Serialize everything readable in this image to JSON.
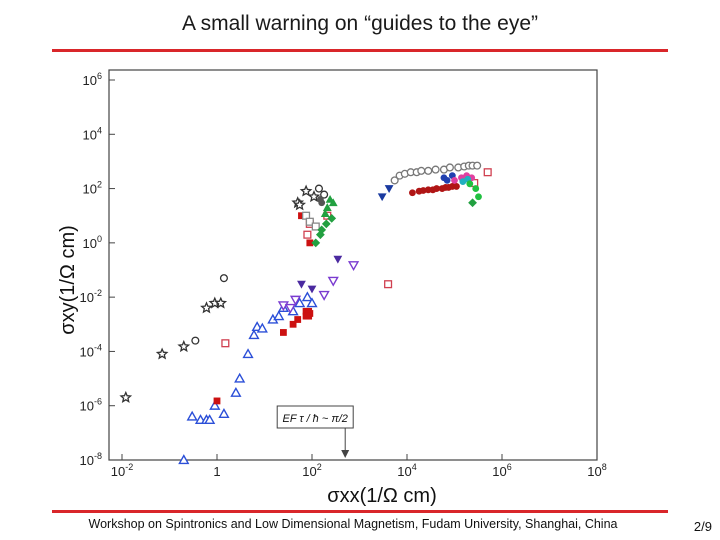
{
  "slide": {
    "title": "A small warning on “guides to the eye”",
    "footer": "Workshop on Spintronics and Low Dimensional Magnetism, Fudam University, Shanghai, China",
    "page": "2/9",
    "accent_color": "#d9262a"
  },
  "chart_data": {
    "type": "scatter",
    "scale": "log-log",
    "xlabel": "σxx(1/Ω cm)",
    "ylabel": "σxy(1/Ω cm)",
    "xlim": [
      0.01,
      1000000
    ],
    "ylim": [
      1e-09,
      1000000
    ],
    "x_ticks": [
      "10-2",
      "1",
      "102",
      "104",
      "106",
      "108"
    ],
    "y_ticks": [
      "106",
      "104",
      "102",
      "100",
      "10-2",
      "10-4",
      "10-6",
      "10-8"
    ],
    "annotation": "EF τ / ħ ~ π/2",
    "annotation_x": 500,
    "grid": false,
    "series": [
      {
        "marker": "star",
        "color": "#333333",
        "points": [
          [
            0.012,
            2e-06
          ],
          [
            0.07,
            8e-05
          ],
          [
            0.2,
            0.00015
          ],
          [
            0.6,
            0.004
          ],
          [
            0.9,
            0.006
          ],
          [
            1.2,
            0.006
          ],
          [
            50,
            30
          ],
          [
            55,
            25
          ],
          [
            75,
            80
          ],
          [
            110,
            50
          ]
        ]
      },
      {
        "marker": "circle-open",
        "color": "#333333",
        "points": [
          [
            0.35,
            0.00025
          ],
          [
            1.4,
            0.05
          ],
          [
            140,
            100
          ],
          [
            180,
            60
          ]
        ]
      },
      {
        "marker": "circle",
        "color": "#555555",
        "points": [
          [
            150,
            40
          ],
          [
            160,
            30
          ]
        ]
      },
      {
        "marker": "triangle-open",
        "color": "#2b4fd8",
        "points": [
          [
            0.2,
            1e-08
          ],
          [
            0.3,
            4e-07
          ],
          [
            0.45,
            3e-07
          ],
          [
            0.6,
            3e-07
          ],
          [
            0.7,
            3e-07
          ],
          [
            0.9,
            1e-06
          ],
          [
            1.4,
            5e-07
          ],
          [
            2.5,
            3e-06
          ],
          [
            3,
            1e-05
          ],
          [
            4.5,
            8e-05
          ],
          [
            6,
            0.0004
          ],
          [
            7,
            0.0008
          ],
          [
            9,
            0.0007
          ],
          [
            15,
            0.0015
          ],
          [
            20,
            0.002
          ],
          [
            25,
            0.004
          ],
          [
            40,
            0.003
          ],
          [
            55,
            0.006
          ],
          [
            80,
            0.01
          ],
          [
            100,
            0.006
          ]
        ]
      },
      {
        "marker": "triangle-down-open",
        "color": "#7a3bd0",
        "points": [
          [
            25,
            0.005
          ],
          [
            35,
            0.004
          ],
          [
            45,
            0.008
          ],
          [
            180,
            0.012
          ],
          [
            280,
            0.04
          ],
          [
            750,
            0.15
          ]
        ]
      },
      {
        "marker": "triangle-down",
        "color": "#4b2aa0",
        "points": [
          [
            60,
            0.03
          ],
          [
            100,
            0.02
          ],
          [
            350,
            0.25
          ]
        ]
      },
      {
        "marker": "square",
        "color": "#cc1111",
        "points": [
          [
            1.0,
            1.5e-06
          ],
          [
            25,
            0.0005
          ],
          [
            40,
            0.001
          ],
          [
            50,
            0.0015
          ],
          [
            75,
            0.003
          ],
          [
            75,
            0.002
          ],
          [
            85,
            0.002
          ],
          [
            90,
            0.0025
          ],
          [
            85,
            0.003
          ],
          [
            80,
            0.002
          ],
          [
            60,
            10
          ],
          [
            90,
            1
          ]
        ]
      },
      {
        "marker": "square-open",
        "color": "#d04050",
        "points": [
          [
            1.5,
            0.0002
          ],
          [
            80,
            2
          ],
          [
            90,
            5
          ],
          [
            210,
            10
          ],
          [
            4000,
            0.03
          ],
          [
            260000,
            160
          ],
          [
            500000,
            400
          ]
        ]
      },
      {
        "marker": "square-open",
        "color": "#888888",
        "points": [
          [
            75,
            10
          ],
          [
            90,
            6
          ],
          [
            120,
            4
          ]
        ]
      },
      {
        "marker": "triangle",
        "color": "#22a040",
        "points": [
          [
            190,
            12
          ],
          [
            210,
            20
          ],
          [
            240,
            40
          ],
          [
            280,
            30
          ]
        ]
      },
      {
        "marker": "diamond",
        "color": "#22a040",
        "points": [
          [
            120,
            1
          ],
          [
            160,
            3
          ],
          [
            200,
            5
          ],
          [
            260,
            8
          ],
          [
            150,
            2
          ],
          [
            240000,
            30
          ]
        ]
      },
      {
        "marker": "circle",
        "color": "#b01515",
        "points": [
          [
            13000,
            70
          ],
          [
            18000,
            80
          ],
          [
            22000,
            85
          ],
          [
            28000,
            90
          ],
          [
            35000,
            90
          ],
          [
            42000,
            100
          ],
          [
            55000,
            100
          ],
          [
            65000,
            110
          ],
          [
            75000,
            110
          ],
          [
            90000,
            120
          ],
          [
            110000,
            120
          ]
        ]
      },
      {
        "marker": "circle-open",
        "color": "#777777",
        "points": [
          [
            5500,
            200
          ],
          [
            7000,
            300
          ],
          [
            9000,
            350
          ],
          [
            12000,
            400
          ],
          [
            16000,
            400
          ],
          [
            20000,
            450
          ],
          [
            28000,
            450
          ],
          [
            40000,
            500
          ],
          [
            60000,
            500
          ],
          [
            80000,
            600
          ],
          [
            120000,
            600
          ],
          [
            160000,
            650
          ],
          [
            200000,
            700
          ],
          [
            240000,
            700
          ],
          [
            300000,
            700
          ]
        ]
      },
      {
        "marker": "triangle-down",
        "color": "#1a3aa0",
        "points": [
          [
            3000,
            50
          ],
          [
            4200,
            100
          ]
        ]
      },
      {
        "marker": "circle",
        "color": "#2040b0",
        "points": [
          [
            60000,
            250
          ],
          [
            70000,
            200
          ],
          [
            90000,
            300
          ]
        ]
      },
      {
        "marker": "circle",
        "color": "#e040a0",
        "points": [
          [
            100000,
            200
          ],
          [
            140000,
            250
          ],
          [
            180000,
            300
          ],
          [
            230000,
            250
          ]
        ]
      },
      {
        "marker": "circle",
        "color": "#20b0c0",
        "points": [
          [
            150000,
            180
          ],
          [
            190000,
            220
          ]
        ]
      },
      {
        "marker": "circle",
        "color": "#20c040",
        "points": [
          [
            210000,
            150
          ],
          [
            280000,
            100
          ],
          [
            320000,
            50
          ]
        ]
      }
    ]
  }
}
